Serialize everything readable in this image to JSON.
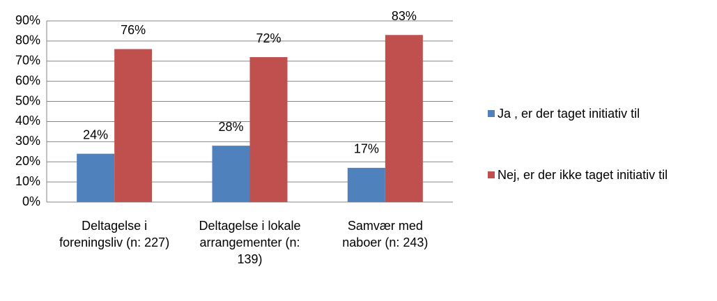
{
  "chart_data": {
    "type": "bar",
    "categories": [
      "Deltagelse i foreningsliv (n: 227)",
      "Deltagelse i lokale arrangementer (n: 139)",
      "Samvær med naboer (n: 243)"
    ],
    "series": [
      {
        "name": "Ja , er der taget initiativ til",
        "color": "#4f81bd",
        "values": [
          24,
          28,
          17
        ],
        "value_labels": [
          "24%",
          "28%",
          "17%"
        ]
      },
      {
        "name": "Nej, er der ikke taget initiativ til",
        "color": "#c0504d",
        "values": [
          76,
          72,
          83
        ],
        "value_labels": [
          "76%",
          "72%",
          "83%"
        ]
      }
    ],
    "ylim": [
      0,
      90
    ],
    "yticks": [
      {
        "value": 0,
        "label": "0%"
      },
      {
        "value": 10,
        "label": "10%"
      },
      {
        "value": 20,
        "label": "20%"
      },
      {
        "value": 30,
        "label": "30%"
      },
      {
        "value": 40,
        "label": "40%"
      },
      {
        "value": 50,
        "label": "50%"
      },
      {
        "value": 60,
        "label": "60%"
      },
      {
        "value": 70,
        "label": "70%"
      },
      {
        "value": 80,
        "label": "80%"
      },
      {
        "value": 90,
        "label": "90%"
      }
    ],
    "grid": true,
    "legend": "right"
  }
}
